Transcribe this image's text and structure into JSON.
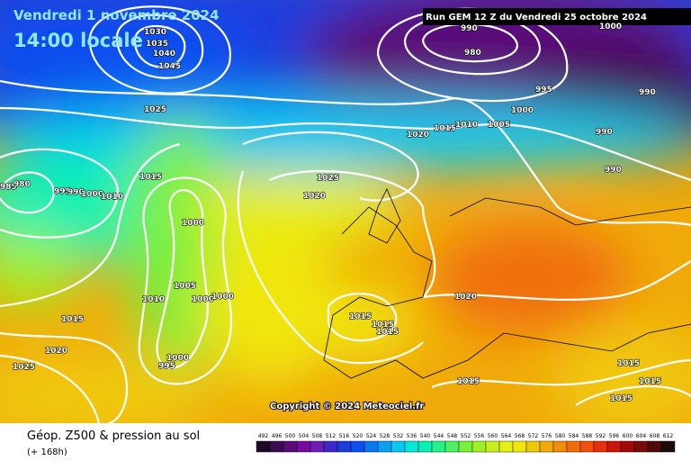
{
  "header": {
    "date": "Vendredi 1 novembre 2024",
    "time": "14:00 locale",
    "run": "Run GEM 12 Z du Vendredi 25 octobre 2024"
  },
  "copyright": "Copyright © 2024 Meteociel.fr",
  "legend": {
    "title": "Géop. Z500 & pression au sol",
    "lead": "(+ 168h)",
    "labels": [
      492,
      496,
      500,
      504,
      508,
      512,
      516,
      520,
      524,
      528,
      532,
      536,
      540,
      544,
      548,
      552,
      556,
      560,
      564,
      568,
      572,
      576,
      580,
      584,
      588,
      592,
      596,
      600,
      604,
      608,
      612
    ],
    "colors": [
      "#1e0a28",
      "#3c0a50",
      "#5a0a78",
      "#780aa0",
      "#6e1eb4",
      "#3c28c8",
      "#1e3cdc",
      "#0a50f0",
      "#0a78f0",
      "#0aa0f0",
      "#0ac8f0",
      "#0ae6dc",
      "#0af0b4",
      "#28f08c",
      "#50f064",
      "#78f03c",
      "#a0f028",
      "#c8f01e",
      "#e6f014",
      "#f0e60a",
      "#f0c80a",
      "#f0aa0a",
      "#f08c0a",
      "#f06e0a",
      "#f0500a",
      "#e6320a",
      "#c8140a",
      "#a00a0a",
      "#780a0a",
      "#500a0a",
      "#1e0a0a"
    ]
  },
  "isobar_labels": [
    1030,
    1035,
    1040,
    1045,
    1025,
    985,
    980,
    995,
    990,
    1000,
    1010,
    1015,
    1000,
    1005,
    1010,
    1000,
    1000,
    995,
    1000,
    1015,
    1020,
    1025,
    1025,
    1020,
    1015,
    1015,
    1015,
    1020,
    1015,
    1015,
    1015,
    1015,
    990,
    980,
    995,
    990,
    990,
    990,
    1010,
    1005,
    1000,
    1020,
    1015,
    1000
  ]
}
